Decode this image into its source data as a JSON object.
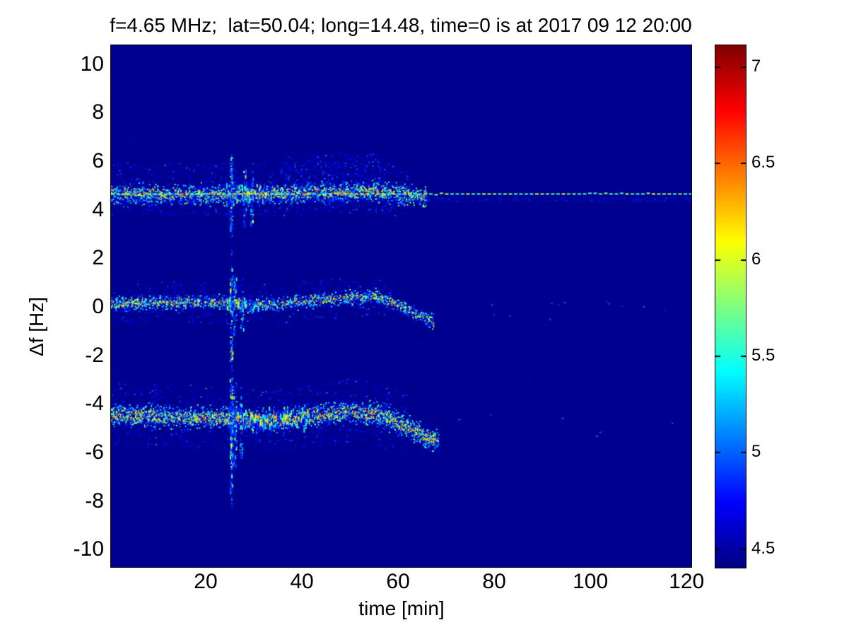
{
  "chart_data": {
    "type": "heatmap",
    "subtype": "doppler_spectrogram",
    "title": "f=4.65 MHz;  lat=50.04; long=14.48, time=0 is at 2017 09 12 20:00",
    "xlabel": "time [min]",
    "ylabel": "Δf [Hz]",
    "xlim": [
      0.3,
      121.0
    ],
    "ylim": [
      -10.72,
      10.78
    ],
    "x_ticks": [
      20,
      40,
      60,
      80,
      100,
      120
    ],
    "y_ticks": [
      10,
      8,
      6,
      4,
      2,
      0,
      -2,
      -4,
      -6,
      -8,
      -10
    ],
    "grid": false,
    "legend": "none",
    "colormap": "jet",
    "clim": [
      4.4,
      7.11
    ],
    "colorbar_ticks": [
      7,
      6.5,
      6,
      5.5,
      5,
      4.5
    ],
    "background_value": 4.42,
    "background_color": "#00008F",
    "carrier_line": {
      "f": 4.65,
      "t_range": [
        0.3,
        121.0
      ],
      "style": "dashed",
      "typical_values": [
        5.5,
        5.85,
        6.15,
        6.45
      ]
    },
    "bands": [
      {
        "name": "upper_sideband",
        "t_range": [
          0.3,
          66
        ],
        "centerline": [
          [
            0.3,
            4.65
          ],
          [
            10,
            4.63
          ],
          [
            20,
            4.6
          ],
          [
            30,
            4.62
          ],
          [
            40,
            4.68
          ],
          [
            48,
            4.73
          ],
          [
            55,
            4.76
          ],
          [
            60,
            4.63
          ],
          [
            66,
            4.55
          ]
        ],
        "spread": 0.38,
        "count": 3200,
        "core_p": 0.3,
        "streak_t": [
          24,
          34
        ],
        "halos": [
          {
            "t_range": [
              0.3,
              62
            ],
            "up": 1.3,
            "down": 0.9,
            "count": 850
          },
          {
            "t_range": [
              36,
              57
            ],
            "up": 1.6,
            "down": 0.2,
            "count": 350
          }
        ]
      },
      {
        "name": "center_line",
        "t_range": [
          0.3,
          67.5
        ],
        "centerline": [
          [
            0.3,
            0.12
          ],
          [
            10,
            0.18
          ],
          [
            20,
            0.2
          ],
          [
            28,
            0.1
          ],
          [
            35,
            0.08
          ],
          [
            42,
            0.25
          ],
          [
            50,
            0.38
          ],
          [
            55,
            0.45
          ],
          [
            58,
            0.25
          ],
          [
            62,
            -0.1
          ],
          [
            67.5,
            -0.62
          ]
        ],
        "spread": 0.27,
        "count": 2300,
        "core_p": 0.3,
        "streak_t": [
          24,
          31
        ],
        "halos": [
          {
            "t_range": [
              0.3,
              60
            ],
            "up": 0.85,
            "down": 0.85,
            "count": 480
          }
        ]
      },
      {
        "name": "lower_sideband",
        "t_range": [
          0.3,
          68.5
        ],
        "centerline": [
          [
            0.3,
            -4.42
          ],
          [
            8,
            -4.5
          ],
          [
            15,
            -4.55
          ],
          [
            25,
            -4.6
          ],
          [
            32,
            -4.68
          ],
          [
            38,
            -4.62
          ],
          [
            44,
            -4.45
          ],
          [
            50,
            -4.32
          ],
          [
            55,
            -4.42
          ],
          [
            58,
            -4.6
          ],
          [
            62,
            -4.95
          ],
          [
            66,
            -5.35
          ],
          [
            68.5,
            -5.6
          ]
        ],
        "spread": 0.42,
        "count": 3800,
        "core_p": 0.38,
        "streak_t": [
          24,
          42
        ],
        "halos": [
          {
            "t_range": [
              0.3,
              62
            ],
            "up": 1.35,
            "down": 1.3,
            "count": 900
          }
        ]
      }
    ],
    "bursts": [
      {
        "t": 25.4,
        "f_range": [
          -8.3,
          6.4
        ],
        "count": 130,
        "style": "dotted_column"
      },
      {
        "t": 25.4,
        "f_range": [
          3.2,
          6.3
        ],
        "count": 90,
        "style": "streak"
      },
      {
        "t": 25.4,
        "f_range": [
          -2.3,
          1.6
        ],
        "count": 80,
        "style": "streak"
      },
      {
        "t": 25.4,
        "f_range": [
          -7.6,
          -2.9
        ],
        "count": 150,
        "style": "streak"
      },
      {
        "t": 26.2,
        "f_range": [
          -6.6,
          -3.1
        ],
        "count": 55,
        "style": "streak"
      },
      {
        "t": 27.4,
        "f_range": [
          -6.2,
          -3.2
        ],
        "count": 45,
        "style": "streak"
      },
      {
        "t": 26.2,
        "f_range": [
          -1.2,
          1.3
        ],
        "count": 35,
        "style": "streak"
      },
      {
        "t": 27.6,
        "f_range": [
          -0.9,
          1.2
        ],
        "count": 28,
        "style": "streak"
      },
      {
        "t": 28.2,
        "f_range": [
          3.4,
          5.7
        ],
        "count": 35,
        "style": "streak"
      },
      {
        "t": 29.6,
        "f_range": [
          3.3,
          5.4
        ],
        "count": 30,
        "style": "streak"
      }
    ],
    "subline": {
      "f": 4.33,
      "t_range": [
        0.3,
        121.0
      ],
      "count": 650,
      "v_range": [
        4.6,
        4.95
      ]
    },
    "noise": {
      "count": 800,
      "v_range": [
        4.45,
        4.75
      ],
      "sparse": {
        "count": 18,
        "t_range": [
          68,
          120
        ],
        "f_centers": [
          0.0,
          -4.9
        ],
        "jitter": 0.5,
        "v_range": [
          4.8,
          5.15
        ]
      }
    }
  }
}
